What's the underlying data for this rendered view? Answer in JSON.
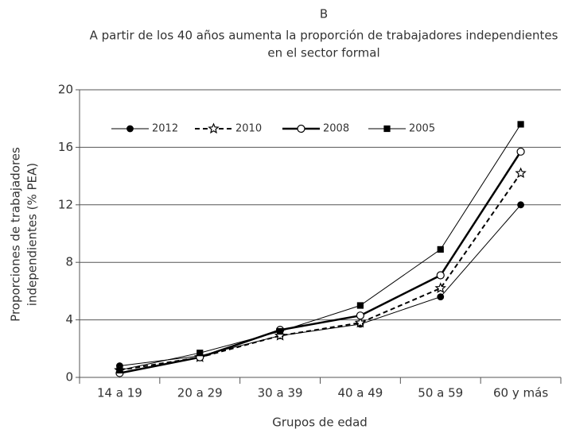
{
  "chart_data": {
    "type": "line",
    "title": "B",
    "subtitle": [
      "A partir de los 40 años aumenta la proporción de trabajadores independientes",
      "en el sector formal"
    ],
    "ylabel": [
      "Proporciones de trabajadores",
      "independientes (% PEA)"
    ],
    "xlabel": "Grupos de edad",
    "categories": [
      "14 a 19",
      "20 a 29",
      "30 a 39",
      "40 a 49",
      "50 a 59",
      "60 y más"
    ],
    "ylim": [
      0,
      20
    ],
    "yticks": [
      0,
      4,
      8,
      12,
      16,
      20
    ],
    "grid": true,
    "legend": "top",
    "series": [
      {
        "name": "2012",
        "color": "#000000",
        "line_style": "solid",
        "line_width": 1,
        "marker": "circle-filled",
        "values": [
          0.8,
          1.5,
          2.9,
          3.7,
          5.6,
          12.0
        ]
      },
      {
        "name": "2010",
        "color": "#000000",
        "line_style": "dashed",
        "line_width": 2,
        "marker": "star-open",
        "values": [
          0.5,
          1.4,
          2.9,
          3.8,
          6.2,
          14.2
        ]
      },
      {
        "name": "2008",
        "color": "#000000",
        "line_style": "solid",
        "line_width": 2.5,
        "marker": "circle-open",
        "values": [
          0.3,
          1.4,
          3.3,
          4.3,
          7.1,
          15.7
        ]
      },
      {
        "name": "2005",
        "color": "#000000",
        "line_style": "solid",
        "line_width": 1,
        "marker": "square-filled",
        "values": [
          0.5,
          1.7,
          3.2,
          5.0,
          8.9,
          17.6
        ]
      }
    ]
  }
}
